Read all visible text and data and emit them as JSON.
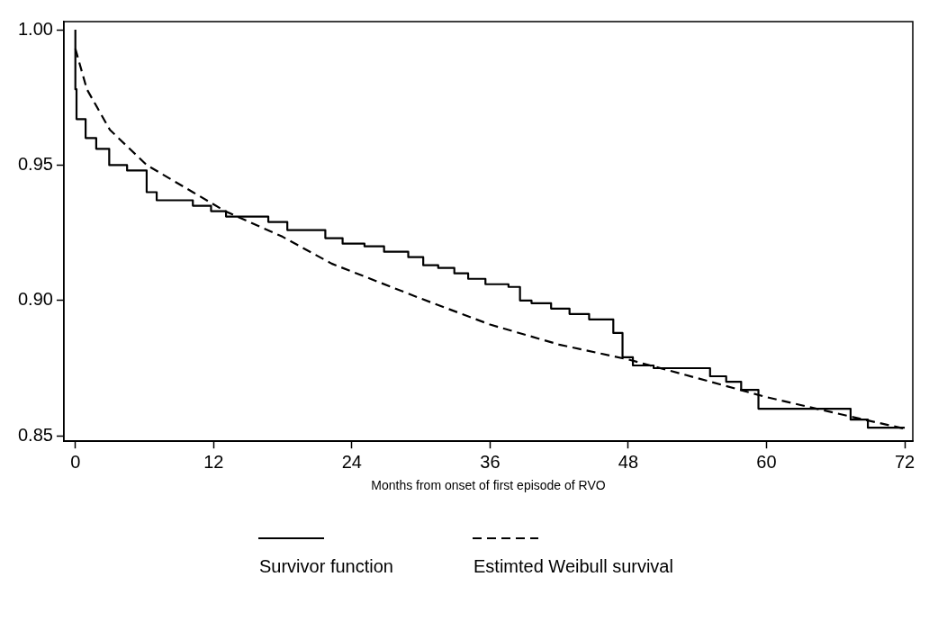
{
  "chart_data": {
    "type": "line",
    "xlabel": "Months from onset of first episode of RVO",
    "xlim": [
      -1,
      72.7
    ],
    "xticks": [
      0,
      12,
      24,
      36,
      48,
      60,
      72
    ],
    "ylim": [
      0.848,
      1.003
    ],
    "yticks": [
      {
        "value": 1,
        "label": "1.00"
      },
      0.95,
      {
        "value": 0.9,
        "label": "0.90"
      },
      0.85
    ],
    "grid": false,
    "legend": "bottom",
    "marker": "none",
    "series": [
      {
        "name": "Survivor function",
        "type": "step",
        "color": "#000000",
        "line_style": "solid",
        "x": [
          0,
          0.1,
          0.89,
          1.81,
          2.94,
          4.49,
          6.19,
          7.06,
          10.2,
          11.78,
          13.08,
          16.75,
          18.4,
          21.7,
          23.2,
          25.1,
          26.8,
          28.9,
          30.2,
          31.5,
          32.9,
          34.1,
          35.6,
          37.6,
          38.6,
          39.6,
          41.3,
          42.9,
          44.6,
          46.7,
          47.5,
          48.4,
          50.2,
          55.1,
          56.5,
          57.8,
          59.3,
          67.3,
          68.8,
          72
        ],
        "values": [
          1,
          0.978,
          0.967,
          0.96,
          0.956,
          0.95,
          0.948,
          0.94,
          0.937,
          0.935,
          0.933,
          0.931,
          0.929,
          0.926,
          0.923,
          0.921,
          0.92,
          0.918,
          0.916,
          0.913,
          0.912,
          0.91,
          0.908,
          0.906,
          0.905,
          0.9,
          0.899,
          0.897,
          0.895,
          0.893,
          0.888,
          0.879,
          0.876,
          0.875,
          0.872,
          0.87,
          0.867,
          0.86,
          0.856,
          0.853
        ]
      },
      {
        "name": "Estimted Weibull survival",
        "type": "line",
        "color": "#000000",
        "line_style": "dashed",
        "x": [
          0,
          1,
          3,
          6.2,
          10.2,
          13,
          18,
          22.25,
          30,
          36,
          42,
          48,
          54,
          60,
          66,
          72
        ],
        "values": [
          0.993,
          0.978,
          0.963,
          0.95,
          0.94,
          0.933,
          0.9235,
          0.9136,
          0.9007,
          0.8911,
          0.8837,
          0.8782,
          0.8713,
          0.8643,
          0.8584,
          0.8526
        ]
      }
    ]
  }
}
